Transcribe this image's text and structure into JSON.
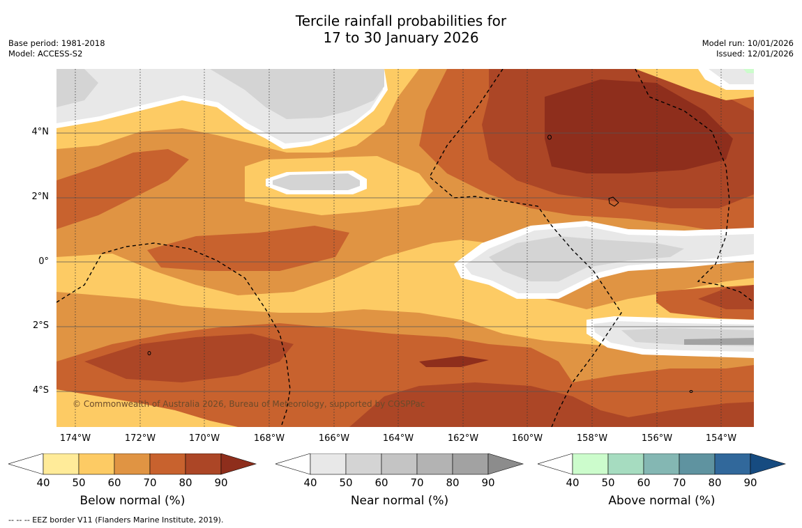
{
  "title_line1": "Tercile rainfall probabilities for",
  "title_line2": "17 to 30 January 2026",
  "base_period": "Base period: 1981-2018",
  "model": "Model: ACCESS-S2",
  "model_run": "Model run: 10/01/2026",
  "issued": "Issued: 12/01/2026",
  "copyright": "© Commonwealth of Australia 2026, Bureau of Meteorology, supported by COSPPac",
  "footnote": "--  --  -- EEZ border V11 (Flanders Marine Institute, 2019).",
  "lat_labels": [
    "4°N",
    "2°N",
    "0°",
    "2°S",
    "4°S"
  ],
  "lon_labels": [
    "174°W",
    "172°W",
    "170°W",
    "168°W",
    "166°W",
    "164°W",
    "162°W",
    "160°W",
    "158°W",
    "156°W",
    "154°W"
  ],
  "legends": [
    {
      "title": "Below normal (%)",
      "ticks": [
        "40",
        "50",
        "60",
        "70",
        "80",
        "90"
      ],
      "colors": [
        "#ffffff",
        "#ffeb99",
        "#fdcb64",
        "#e09443",
        "#c8622e",
        "#ac4626",
        "#8e2e1c"
      ]
    },
    {
      "title": "Near normal (%)",
      "ticks": [
        "40",
        "50",
        "60",
        "70",
        "80",
        "90"
      ],
      "colors": [
        "#ffffff",
        "#e8e8e8",
        "#d4d4d4",
        "#c4c4c4",
        "#b3b3b3",
        "#a2a2a2",
        "#8c8c8c"
      ]
    },
    {
      "title": "Above normal (%)",
      "ticks": [
        "40",
        "50",
        "60",
        "70",
        "80",
        "90"
      ],
      "colors": [
        "#ffffff",
        "#ccfccc",
        "#a6dcc0",
        "#84b7b3",
        "#5f93a0",
        "#31689b",
        "#164b80"
      ]
    }
  ]
}
